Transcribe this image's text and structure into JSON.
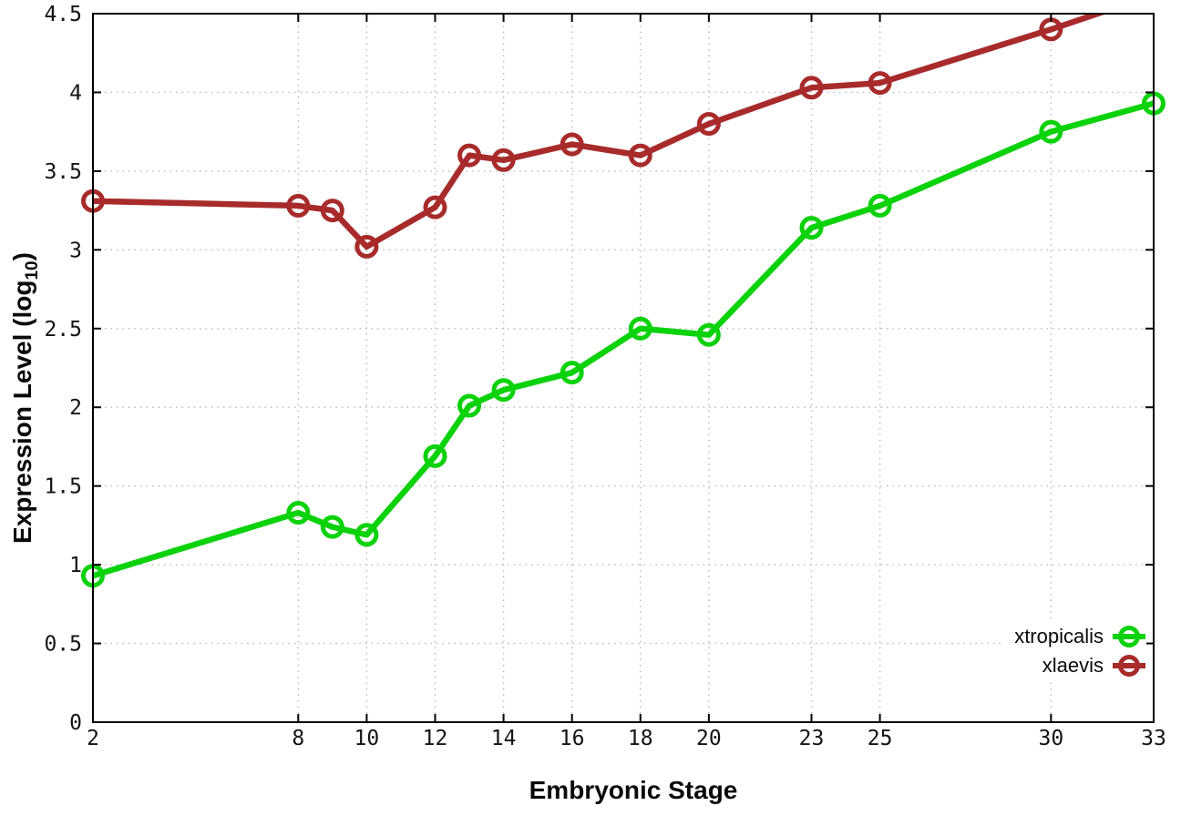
{
  "chart_data": {
    "type": "line",
    "title": "",
    "xlabel": "Embryonic Stage",
    "ylabel": {
      "prefix": "Expression Level (log",
      "subscript": "10",
      "suffix": ")"
    },
    "xlim": [
      2,
      33
    ],
    "ylim": [
      0,
      4.5
    ],
    "grid": true,
    "legend_position": "bottom-right",
    "x_ticks": [
      2,
      8,
      10,
      12,
      14,
      16,
      18,
      20,
      23,
      25,
      30,
      33
    ],
    "x_tick_labels": [
      "2",
      "8",
      "10",
      "12",
      "14",
      "16",
      "18",
      "20",
      "23",
      "25",
      "30",
      "33"
    ],
    "y_ticks": [
      0,
      0.5,
      1,
      1.5,
      2,
      2.5,
      3,
      3.5,
      4,
      4.5
    ],
    "y_tick_labels": [
      "0",
      "0.5",
      "1",
      "1.5",
      "2",
      "2.5",
      "3",
      "3.5",
      "4",
      "4.5"
    ],
    "series": [
      {
        "name": "xtropicalis",
        "color": "#0bd20b",
        "x": [
          2,
          8,
          9,
          10,
          12,
          13,
          14,
          16,
          18,
          20,
          23,
          25,
          30,
          33
        ],
        "y": [
          0.93,
          1.33,
          1.24,
          1.19,
          1.69,
          2.01,
          2.11,
          2.22,
          2.5,
          2.46,
          3.14,
          3.28,
          3.75,
          3.93
        ]
      },
      {
        "name": "xlaevis",
        "color": "#a82b2b",
        "x": [
          2,
          8,
          9,
          10,
          12,
          13,
          14,
          16,
          18,
          20,
          23,
          25,
          30,
          33
        ],
        "y": [
          3.31,
          3.28,
          3.25,
          3.02,
          3.27,
          3.6,
          3.57,
          3.67,
          3.6,
          3.8,
          4.03,
          4.06,
          4.4,
          4.62
        ]
      }
    ],
    "style": {
      "grid_color": "#b8b8b8",
      "border_color": "#000000",
      "background": "#ffffff"
    }
  }
}
